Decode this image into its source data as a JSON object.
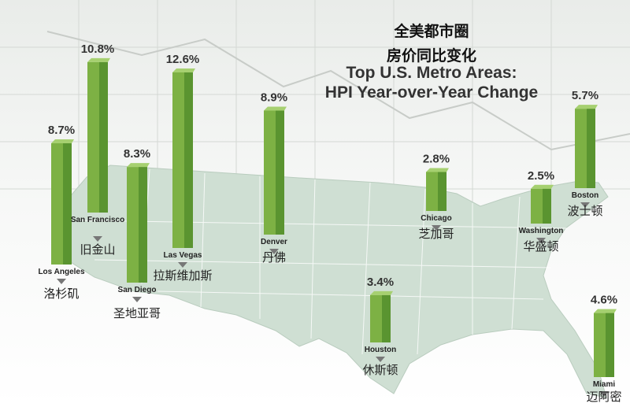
{
  "chart_data": {
    "type": "bar",
    "title": [
      "全美都市圈",
      "房价同比变化",
      "Top U.S. Metro Areas:",
      "HPI Year-over-Year Change"
    ],
    "categories": [
      "Los Angeles",
      "San Francisco",
      "San Diego",
      "Las Vegas",
      "Denver",
      "Chicago",
      "Washington",
      "Boston",
      "Houston",
      "Miami"
    ],
    "categories_zh": [
      "洛杉矶",
      "旧金山",
      "圣地亚哥",
      "拉斯维加斯",
      "丹佛",
      "芝加哥",
      "华盛顿",
      "波士顿",
      "休斯顿",
      "迈阿密"
    ],
    "values": [
      8.7,
      10.8,
      8.3,
      12.6,
      8.9,
      2.8,
      2.5,
      5.7,
      3.4,
      4.6
    ],
    "value_labels": [
      "8.7%",
      "10.8%",
      "8.3%",
      "12.6%",
      "8.9%",
      "2.8%",
      "2.5%",
      "5.7%",
      "3.4%",
      "4.6%"
    ],
    "color": "#7db144"
  }
}
